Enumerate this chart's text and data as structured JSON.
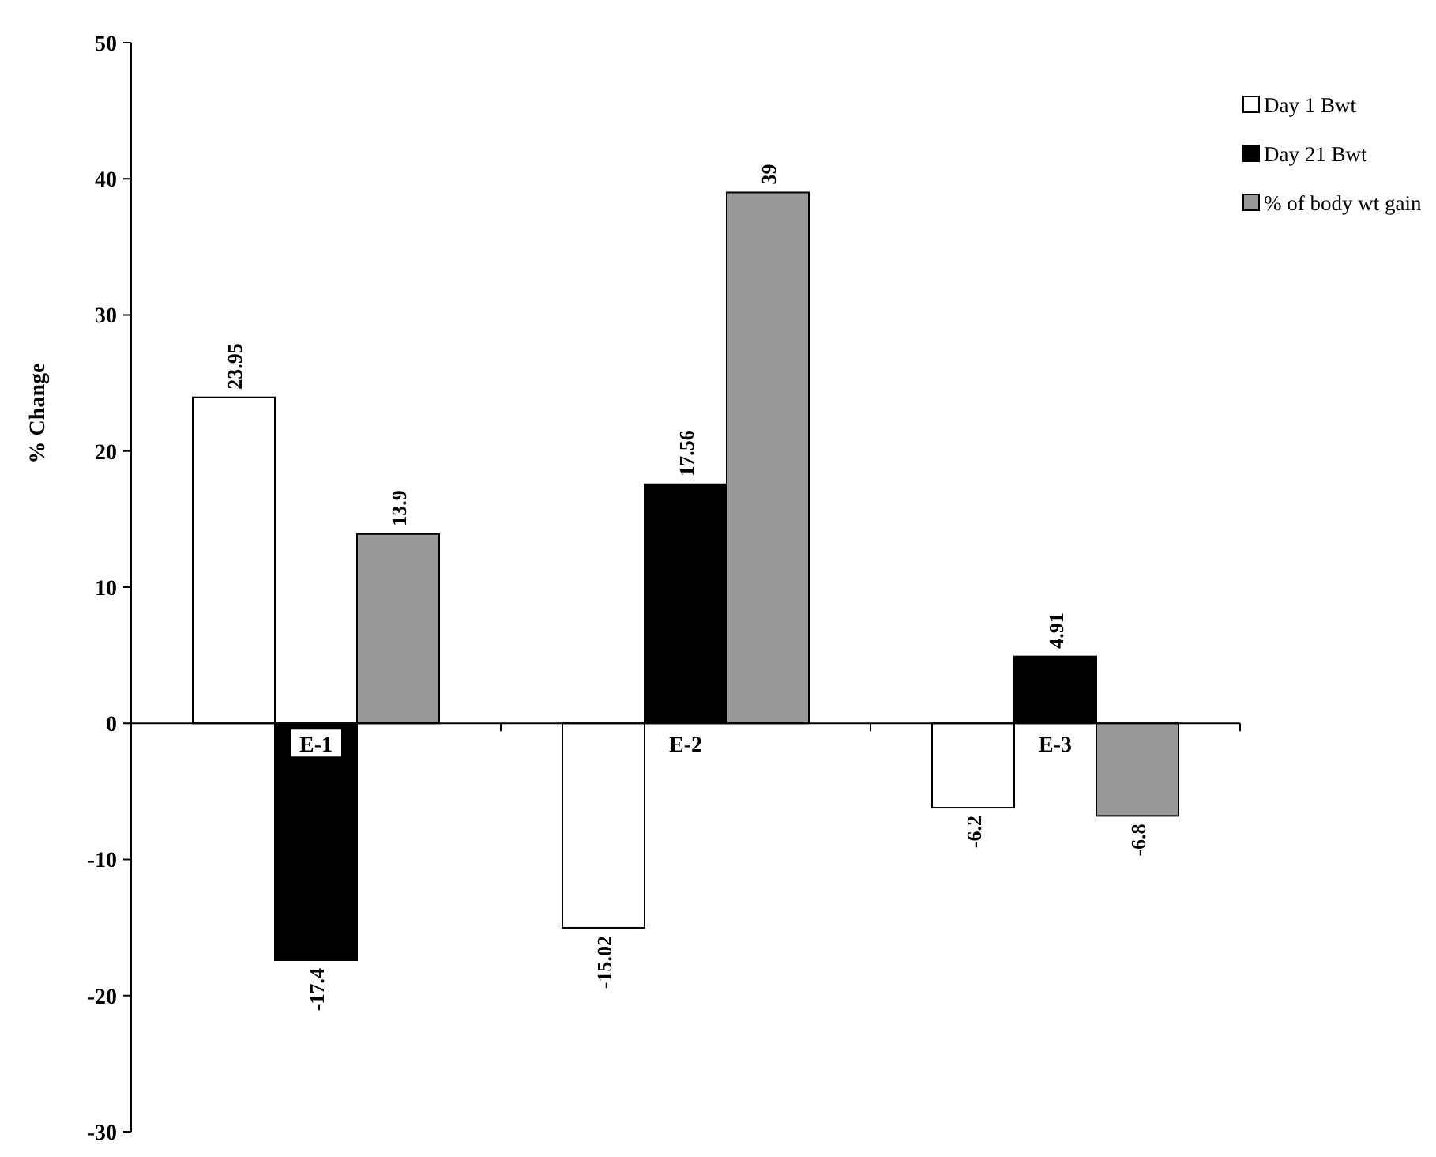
{
  "chart_data": {
    "type": "bar",
    "ylabel": "% Change",
    "categories": [
      "E-1",
      "E-2",
      "E-3"
    ],
    "series": [
      {
        "name": "Day 1 Bwt",
        "color": "#ffffff",
        "values": [
          23.95,
          -15.02,
          -6.2
        ]
      },
      {
        "name": "Day 21 Bwt",
        "color": "#000000",
        "values": [
          -17.4,
          17.56,
          4.91
        ]
      },
      {
        "name": "% of body wt gain",
        "color": "#999999",
        "values": [
          13.9,
          39,
          -6.8
        ]
      }
    ],
    "ylim": [
      -30,
      50
    ],
    "yticks": [
      -30,
      -20,
      -10,
      0,
      10,
      20,
      30,
      40,
      50
    ],
    "data_labels": true,
    "legend": "right",
    "grid": false
  }
}
